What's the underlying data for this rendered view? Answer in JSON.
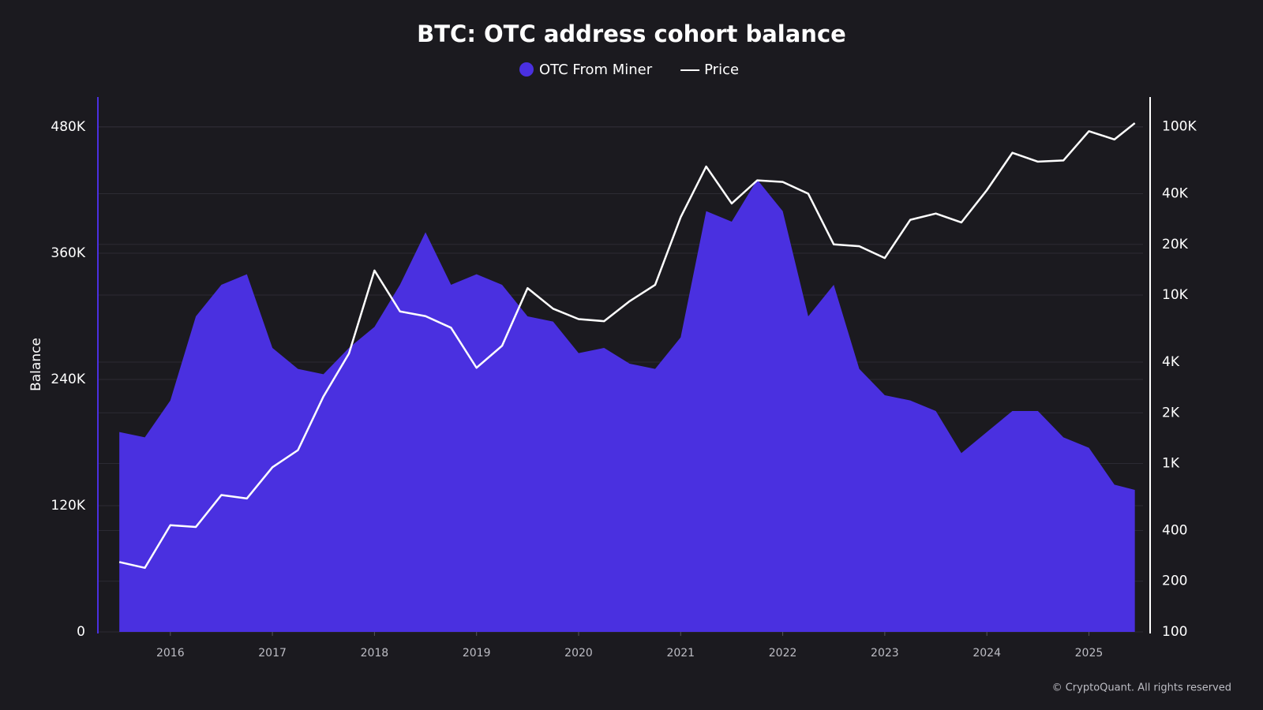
{
  "chart_data": {
    "type": "area-line",
    "title": "BTC: OTC address cohort balance",
    "y_label": "Balance",
    "source": "© CryptoQuant. All rights reserved",
    "x": [
      2015.5,
      2015.75,
      2016.0,
      2016.25,
      2016.5,
      2016.75,
      2017.0,
      2017.25,
      2017.5,
      2017.75,
      2018.0,
      2018.25,
      2018.5,
      2018.75,
      2019.0,
      2019.25,
      2019.5,
      2019.75,
      2020.0,
      2020.25,
      2020.5,
      2020.75,
      2021.0,
      2021.25,
      2021.5,
      2021.75,
      2022.0,
      2022.25,
      2022.5,
      2022.75,
      2023.0,
      2023.25,
      2023.5,
      2023.75,
      2024.0,
      2024.25,
      2024.5,
      2024.75,
      2025.0,
      2025.25,
      2025.45
    ],
    "xlim": [
      2015.29,
      2025.53
    ],
    "xticks": [
      2016,
      2017,
      2018,
      2019,
      2020,
      2021,
      2022,
      2023,
      2024,
      2025
    ],
    "ylim": [
      0,
      508500
    ],
    "yticks": [
      {
        "value": 0,
        "label": "0"
      },
      {
        "value": 120000,
        "label": "120K"
      },
      {
        "value": 240000,
        "label": "240K"
      },
      {
        "value": 360000,
        "label": "360K"
      },
      {
        "value": 480000,
        "label": "480K"
      }
    ],
    "y2lim": [
      100,
      150000
    ],
    "y2_log": true,
    "y2ticks": [
      100,
      200,
      400,
      {
        "value": 1000,
        "label": "1K"
      },
      {
        "value": 2000,
        "label": "2K"
      },
      {
        "value": 4000,
        "label": "4K"
      },
      {
        "value": 10000,
        "label": "10K"
      },
      {
        "value": 20000,
        "label": "20K"
      },
      {
        "value": 40000,
        "label": "40K"
      },
      {
        "value": 100000,
        "label": "100K"
      }
    ],
    "grid": true,
    "series": [
      {
        "name": "OTC From Miner",
        "color": "#4a30e0",
        "kind": "area",
        "values": [
          190000,
          185000,
          220000,
          300000,
          330000,
          340000,
          270000,
          250000,
          245000,
          270000,
          290000,
          330000,
          380000,
          330000,
          340000,
          330000,
          300000,
          295000,
          265000,
          270000,
          255000,
          250000,
          280000,
          400000,
          390000,
          430000,
          400000,
          300000,
          330000,
          250000,
          225000,
          220000,
          210000,
          170000,
          190000,
          210000,
          210000,
          185000,
          175000,
          140000,
          135000
        ]
      },
      {
        "name": "Price",
        "color": "#ffffff",
        "kind": "line",
        "axis": "y2",
        "values": [
          260,
          240,
          430,
          420,
          650,
          620,
          950,
          1200,
          2500,
          4500,
          14000,
          8000,
          7500,
          6400,
          3700,
          5000,
          11000,
          8300,
          7200,
          7000,
          9200,
          11500,
          29000,
          58000,
          35000,
          48000,
          47000,
          40000,
          20000,
          19500,
          16600,
          28000,
          30500,
          27000,
          42000,
          70000,
          62000,
          63000,
          94000,
          84000,
          105000
        ]
      }
    ]
  }
}
